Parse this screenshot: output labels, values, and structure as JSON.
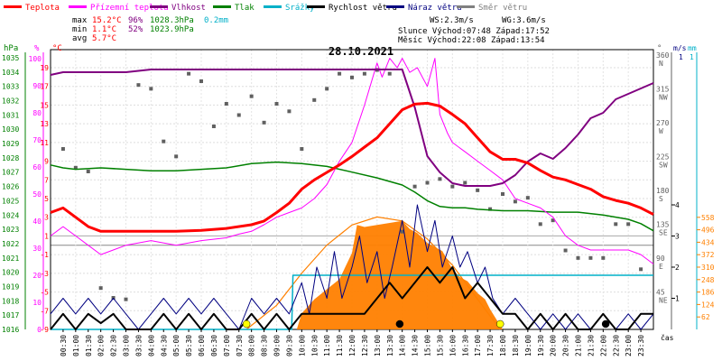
{
  "chart_data": {
    "type": "line",
    "title": "28.10.2021",
    "legend": [
      {
        "label": "Teplota",
        "color": "#ff0000"
      },
      {
        "label": "Přízemní teplota",
        "color": "#ff00ff"
      },
      {
        "label": "Vlhkost",
        "color": "#800080"
      },
      {
        "label": "Tlak",
        "color": "#008000"
      },
      {
        "label": "Srážky",
        "color": "#00b0c8"
      },
      {
        "label": "Rychlost větru",
        "color": "#000000"
      },
      {
        "label": "Náraz větru",
        "color": "#000080"
      },
      {
        "label": "Směr větru",
        "color": "#808080"
      }
    ],
    "stats": {
      "max": {
        "label": "max",
        "temp": "15.2°C",
        "hum": "96%",
        "press": "1028.3hPa",
        "rain": "0.2mm"
      },
      "min": {
        "label": "min",
        "temp": "1.1°C",
        "hum": "52%",
        "press": "1023.9hPa"
      },
      "avg": {
        "label": "avg",
        "temp": "5.7°C"
      }
    },
    "info": {
      "ws": "WS:2.3m/s",
      "wg": "WG:3.6m/s",
      "sun": "Slunce Východ:07:48   Západ:17:52",
      "moon": "Měsíc  Východ:22:08   Západ:13:54"
    },
    "axes": {
      "hpa": {
        "title": "hPa",
        "ticks": [
          "1035",
          "1034",
          "1033",
          "1032",
          "1031",
          "1030",
          "1029",
          "1028",
          "1027",
          "1026",
          "1025",
          "1024",
          "1023",
          "1022",
          "1021",
          "1020",
          "1019",
          "1018",
          "1017",
          "1016"
        ],
        "range": [
          1016,
          1035
        ]
      },
      "pct": {
        "title": "%",
        "ticks": [
          "100",
          "90",
          "80",
          "70",
          "60",
          "50",
          "40",
          "30",
          "20",
          "10",
          "0"
        ],
        "range": [
          0,
          100
        ]
      },
      "temp": {
        "title": "°C",
        "ticks": [
          "19",
          "17",
          "15",
          "13",
          "11",
          "9",
          "7",
          "5",
          "3",
          "1",
          "-1",
          "-3",
          "-5",
          "-7",
          "-9"
        ],
        "range": [
          -9,
          19
        ]
      },
      "dir": {
        "title": "°",
        "ticks": [
          "360 N",
          "315 NW",
          "270 W",
          "225 SW",
          "180 S",
          "135 SE",
          "90 E",
          "45 NE"
        ],
        "range": [
          0,
          360
        ]
      },
      "ms": {
        "title": "m/s",
        "ticks": [
          "1",
          "4",
          "3",
          "2",
          "1"
        ]
      },
      "mm": {
        "title": "mm",
        "ticks": [
          "1"
        ]
      },
      "wm2": {
        "ticks": [
          "558",
          "496",
          "434",
          "372",
          "310",
          "248",
          "186",
          "124",
          "62"
        ],
        "range": [
          0,
          620
        ]
      },
      "x": {
        "title": "čas",
        "ticks": [
          "00:30",
          "01:00",
          "01:30",
          "02:00",
          "02:30",
          "03:00",
          "03:30",
          "04:00",
          "04:30",
          "05:00",
          "05:30",
          "06:00",
          "06:30",
          "07:00",
          "07:30",
          "08:00",
          "08:30",
          "09:00",
          "09:30",
          "10:00",
          "10:30",
          "11:00",
          "11:30",
          "12:00",
          "12:30",
          "13:00",
          "13:30",
          "14:00",
          "14:30",
          "15:00",
          "15:30",
          "16:00",
          "16:30",
          "17:00",
          "17:30",
          "18:00",
          "18:30",
          "19:00",
          "19:30",
          "20:00",
          "20:30",
          "21:00",
          "21:30",
          "22:00",
          "22:30",
          "23:00",
          "23:30"
        ]
      }
    },
    "series": [
      {
        "name": "Teplota",
        "unit": "°C",
        "color": "#ff0000",
        "x": [
          0,
          0.5,
          1,
          1.5,
          2,
          2.5,
          3,
          4,
          5,
          6,
          7,
          8,
          8.5,
          9,
          9.5,
          10,
          10.5,
          11,
          11.5,
          12,
          12.5,
          13,
          13.5,
          14,
          14.5,
          15,
          15.5,
          16,
          16.5,
          17,
          17.5,
          18,
          18.5,
          19,
          19.5,
          20,
          20.5,
          21,
          21.5,
          22,
          22.5,
          23,
          23.5,
          24
        ],
        "y": [
          3.5,
          4,
          3,
          2,
          1.5,
          1.5,
          1.5,
          1.5,
          1.5,
          1.6,
          1.8,
          2.2,
          2.6,
          3.5,
          4.5,
          6,
          7,
          7.8,
          8.6,
          9.5,
          10.5,
          11.5,
          13,
          14.5,
          15.1,
          15.2,
          14.9,
          14,
          13,
          11.5,
          10,
          9.2,
          9.2,
          8.8,
          8,
          7.3,
          7,
          6.5,
          6,
          5.2,
          4.8,
          4.5,
          4,
          3.3
        ]
      },
      {
        "name": "Přízemní teplota",
        "unit": "°C",
        "color": "#ff00ff",
        "x": [
          0,
          0.5,
          1,
          1.5,
          2,
          3,
          4,
          5,
          6,
          7,
          7.5,
          8,
          8.5,
          9,
          9.5,
          10,
          10.5,
          11,
          11.5,
          12,
          12.5,
          13,
          13.2,
          13.5,
          13.8,
          14,
          14.3,
          14.6,
          15,
          15.3,
          15.5,
          15.8,
          16,
          16.5,
          17,
          17.5,
          18,
          18.5,
          19,
          19.5,
          20,
          20.5,
          21,
          21.5,
          22,
          22.5,
          23,
          23.5,
          24
        ],
        "y": [
          1,
          2,
          1,
          0,
          -1,
          0,
          0.5,
          0,
          0.5,
          0.8,
          1.2,
          1.5,
          2.2,
          3,
          3.5,
          4,
          5,
          6.5,
          9,
          11,
          15,
          19.5,
          18,
          20,
          19,
          20,
          18.5,
          19,
          17,
          20,
          14,
          12,
          11,
          10,
          9,
          8,
          7,
          5,
          4.5,
          4,
          3,
          1,
          0,
          -0.5,
          -0.5,
          -0.5,
          -0.5,
          -1,
          -2
        ]
      },
      {
        "name": "Vlhkost",
        "unit": "%",
        "color": "#800080",
        "x": [
          0,
          0.5,
          1,
          2,
          3,
          4,
          5,
          6,
          7,
          8,
          9,
          10,
          11,
          12,
          12.5,
          13,
          13.5,
          14,
          14.5,
          15,
          15.5,
          16,
          16.5,
          17,
          17.5,
          18,
          18.5,
          19,
          19.5,
          20,
          20.5,
          21,
          21.5,
          22,
          22.5,
          23,
          23.5,
          24
        ],
        "y": [
          94,
          95,
          95,
          95,
          95,
          96,
          96,
          96,
          96,
          96,
          96,
          96,
          96,
          96,
          96,
          96,
          96,
          96,
          82,
          64,
          58,
          54,
          53,
          53,
          53,
          54,
          57,
          62,
          65,
          63,
          67,
          72,
          78,
          80,
          85,
          87,
          89,
          91
        ]
      },
      {
        "name": "Tlak",
        "unit": "hPa",
        "color": "#008000",
        "x": [
          0,
          0.5,
          1,
          2,
          3,
          4,
          5,
          6,
          7,
          8,
          9,
          10,
          11,
          12,
          13,
          14,
          14.5,
          15,
          15.5,
          16,
          16.5,
          17,
          18,
          19,
          20,
          21,
          22,
          23,
          23.5,
          24
        ],
        "y": [
          1027.5,
          1027.3,
          1027.2,
          1027.3,
          1027.2,
          1027.1,
          1027.1,
          1027.2,
          1027.3,
          1027.6,
          1027.7,
          1027.6,
          1027.4,
          1027.0,
          1026.6,
          1026.1,
          1025.6,
          1025.0,
          1024.6,
          1024.5,
          1024.5,
          1024.4,
          1024.3,
          1024.3,
          1024.2,
          1024.2,
          1024.0,
          1023.7,
          1023.4,
          1022.9
        ]
      },
      {
        "name": "Srážky",
        "unit": "mm",
        "color": "#00b0c8",
        "x": [
          0,
          9.6,
          9.65,
          24
        ],
        "y": [
          0,
          0,
          0.2,
          0.2
        ]
      },
      {
        "name": "Rychlost větru",
        "unit": "m/s",
        "color": "#000000",
        "x": [
          0,
          0.5,
          1,
          1.5,
          2,
          2.5,
          3,
          3.5,
          4,
          4.5,
          5,
          5.5,
          6,
          6.5,
          7,
          7.5,
          8,
          8.5,
          9,
          9.5,
          10,
          10.5,
          11,
          11.5,
          12,
          12.5,
          13,
          13.5,
          14,
          14.5,
          15,
          15.5,
          16,
          16.5,
          17,
          17.5,
          18,
          18.5,
          19,
          19.5,
          20,
          20.5,
          21,
          21.5,
          22,
          22.5,
          23,
          23.5,
          24
        ],
        "y": [
          0,
          0.5,
          0,
          0.5,
          0.2,
          0.5,
          0,
          0,
          0,
          0.5,
          0,
          0.5,
          0,
          0.5,
          0,
          0,
          0.5,
          0,
          0.5,
          0,
          0.5,
          0.5,
          0.5,
          0.5,
          0.5,
          0.5,
          1,
          1.5,
          1,
          1.5,
          2,
          1.5,
          2,
          1,
          1.5,
          1,
          0.5,
          0.5,
          0,
          0.5,
          0,
          0.5,
          0,
          0,
          0.5,
          0,
          0,
          0.5,
          0.5
        ]
      },
      {
        "name": "Náraz větru",
        "unit": "m/s",
        "color": "#000080",
        "x": [
          0,
          0.5,
          1,
          1.5,
          2,
          2.5,
          3,
          3.5,
          4,
          4.5,
          5,
          5.5,
          6,
          6.5,
          7,
          7.5,
          8,
          8.5,
          9,
          9.5,
          10,
          10.3,
          10.6,
          11,
          11.3,
          11.6,
          12,
          12.3,
          12.6,
          13,
          13.3,
          13.6,
          14,
          14.3,
          14.6,
          15,
          15.3,
          15.6,
          16,
          16.3,
          16.6,
          17,
          17.3,
          17.6,
          18,
          18.5,
          19,
          19.5,
          20,
          20.5,
          21,
          21.5,
          22,
          22.5,
          23,
          23.5,
          24
        ],
        "y": [
          0.5,
          1,
          0.5,
          1,
          0.5,
          1,
          0.5,
          0,
          0.5,
          1,
          0.5,
          1,
          0.5,
          1,
          0.5,
          0,
          1,
          0.5,
          1,
          0.5,
          1.5,
          0.5,
          2,
          1,
          2.5,
          1,
          2,
          3,
          1.5,
          2.5,
          1,
          2,
          3.5,
          2,
          4,
          2.5,
          3.5,
          2,
          3,
          2,
          2.5,
          1.5,
          2,
          1,
          0.5,
          1,
          0.5,
          0,
          0.5,
          0,
          0.5,
          0,
          0.5,
          0,
          0.5,
          0,
          0.5
        ]
      },
      {
        "name": "Směr větru",
        "unit": "°",
        "color": "#606060",
        "type": "scatter",
        "x": [
          0.5,
          1,
          1.5,
          2,
          2.5,
          3,
          3.5,
          4,
          4.5,
          5,
          5.5,
          6,
          6.5,
          7,
          7.5,
          8,
          8.5,
          9,
          9.5,
          10,
          10.5,
          11,
          11.5,
          12,
          12.5,
          13,
          13.5,
          14,
          14.5,
          15,
          15.5,
          16,
          16.5,
          17,
          17.5,
          18,
          18.5,
          19,
          19.5,
          20,
          20.5,
          21,
          21.5,
          22,
          22.5,
          23,
          23.5
        ],
        "y": [
          240,
          215,
          210,
          55,
          42,
          40,
          325,
          320,
          250,
          230,
          340,
          330,
          270,
          300,
          285,
          310,
          275,
          300,
          290,
          240,
          305,
          320,
          340,
          335,
          340,
          345,
          340,
          130,
          190,
          195,
          200,
          190,
          195,
          185,
          160,
          180,
          170,
          175,
          140,
          145,
          105,
          95,
          95,
          95,
          140,
          140,
          80
        ]
      },
      {
        "name": "Sluneční záření",
        "unit": "W/m²",
        "color": "#ff8000",
        "type": "area",
        "x": [
          9.8,
          10,
          10.5,
          11,
          11.5,
          12,
          12.2,
          12.5,
          13,
          13.5,
          14,
          14.3,
          14.6,
          15,
          15.3,
          15.6,
          16,
          16.3,
          16.6,
          17,
          17.3,
          17.5,
          17.8,
          18
        ],
        "y": [
          0,
          80,
          150,
          200,
          250,
          380,
          520,
          510,
          520,
          530,
          540,
          500,
          480,
          430,
          410,
          390,
          300,
          260,
          240,
          180,
          150,
          100,
          40,
          0
        ]
      },
      {
        "name": "Teoretické záření",
        "unit": "W/m²",
        "color": "#ff8000",
        "x": [
          7.8,
          9,
          10,
          11,
          12,
          13,
          14,
          15,
          16,
          17,
          17.9
        ],
        "y": [
          0,
          120,
          280,
          420,
          520,
          560,
          540,
          450,
          320,
          150,
          0
        ]
      }
    ],
    "markers": [
      {
        "type": "sunrise",
        "x": 7.8,
        "color": "#ffff00"
      },
      {
        "type": "sunset",
        "x": 17.9,
        "color": "#ffff00"
      },
      {
        "type": "moonset",
        "x": 13.9,
        "color": "#000000"
      },
      {
        "type": "moonrise",
        "x": 22.1,
        "color": "#000000"
      }
    ]
  }
}
